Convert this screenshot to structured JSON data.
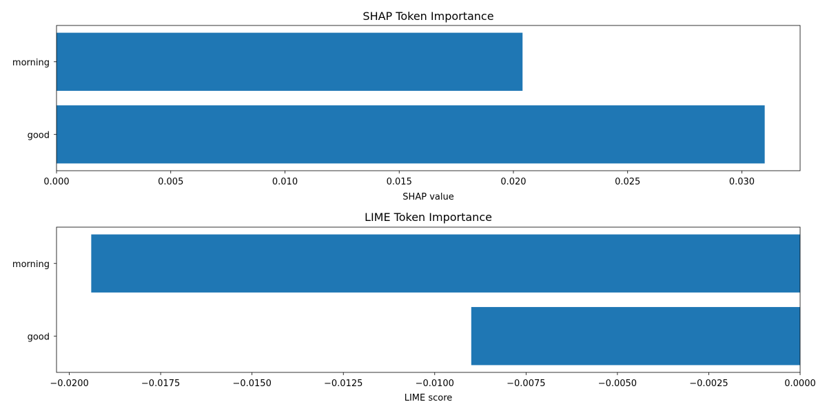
{
  "chart_data": [
    {
      "type": "bar",
      "orientation": "horizontal",
      "title": "SHAP Token Importance",
      "xlabel": "SHAP value",
      "ylabel": "",
      "categories": [
        "morning",
        "good"
      ],
      "values": [
        0.0204,
        0.031
      ],
      "xlim": [
        0,
        0.03255
      ],
      "xticks": [
        0.0,
        0.005,
        0.01,
        0.015,
        0.02,
        0.025,
        0.03
      ],
      "xtick_labels": [
        "0.000",
        "0.005",
        "0.010",
        "0.015",
        "0.020",
        "0.025",
        "0.030"
      ],
      "bar_color": "#1f77b4",
      "grid": false
    },
    {
      "type": "bar",
      "orientation": "horizontal",
      "title": "LIME Token Importance",
      "xlabel": "LIME score",
      "ylabel": "",
      "categories": [
        "morning",
        "good"
      ],
      "values": [
        -0.0194,
        -0.009
      ],
      "xlim": [
        -0.02035,
        0
      ],
      "xticks": [
        -0.02,
        -0.0175,
        -0.015,
        -0.0125,
        -0.01,
        -0.0075,
        -0.005,
        -0.0025,
        0.0
      ],
      "xtick_labels": [
        "−0.0200",
        "−0.0175",
        "−0.0150",
        "−0.0125",
        "−0.0100",
        "−0.0075",
        "−0.0050",
        "−0.0025",
        "0.0000"
      ],
      "bar_color": "#1f77b4",
      "grid": false
    }
  ]
}
